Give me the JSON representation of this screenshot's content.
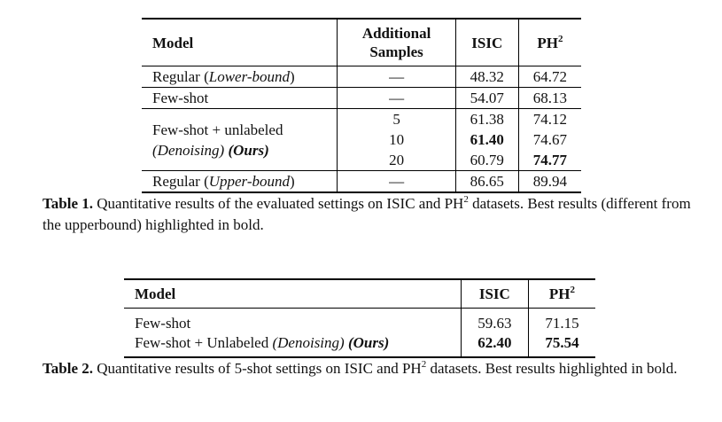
{
  "table1": {
    "headers": {
      "model": "Model",
      "additional_line1": "Additional",
      "additional_line2": "Samples",
      "isic": "ISIC",
      "ph_base": "PH",
      "ph_sup": "2"
    },
    "rows": {
      "lower": {
        "model_prefix": "Regular (",
        "model_italic": "Lower-bound",
        "model_suffix": ")",
        "samples": "—",
        "isic": "48.32",
        "ph2": "64.72"
      },
      "fewshot": {
        "model": "Few-shot",
        "samples": "—",
        "isic": "54.07",
        "ph2": "68.13"
      },
      "denoise": {
        "model_line1": "Few-shot + unlabeled",
        "model_line2_italic": "(Denoising)",
        "model_line2_bold": "(Ours)",
        "samples": [
          "5",
          "10",
          "20"
        ],
        "isic": [
          "61.38",
          "61.40",
          "60.79"
        ],
        "ph2": [
          "74.12",
          "74.67",
          "74.77"
        ]
      },
      "upper": {
        "model_prefix": "Regular (",
        "model_italic": "Upper-bound",
        "model_suffix": ")",
        "samples": "—",
        "isic": "86.65",
        "ph2": "89.94"
      }
    },
    "caption": {
      "label": "Table 1.",
      "text_a": " Quantitative results of the evaluated settings on ISIC and PH",
      "sup": "2",
      "text_b": " datasets. Best results (different from the upperbound) highlighted in bold."
    }
  },
  "table2": {
    "headers": {
      "model": "Model",
      "isic": "ISIC",
      "ph_base": "PH",
      "ph_sup": "2"
    },
    "rows": {
      "fewshot": {
        "model": "Few-shot",
        "isic": "59.63",
        "ph2": "71.15"
      },
      "unlabeled": {
        "model_prefix": "Few-shot + Unlabeled ",
        "model_italic": "(Denoising)",
        "model_bold": "(Ours)",
        "isic": "62.40",
        "ph2": "75.54"
      }
    },
    "caption": {
      "label": "Table 2.",
      "text_a": " Quantitative results of 5-shot settings on ISIC and PH",
      "sup": "2",
      "text_b": " datasets. Best results highlighted in bold."
    }
  }
}
